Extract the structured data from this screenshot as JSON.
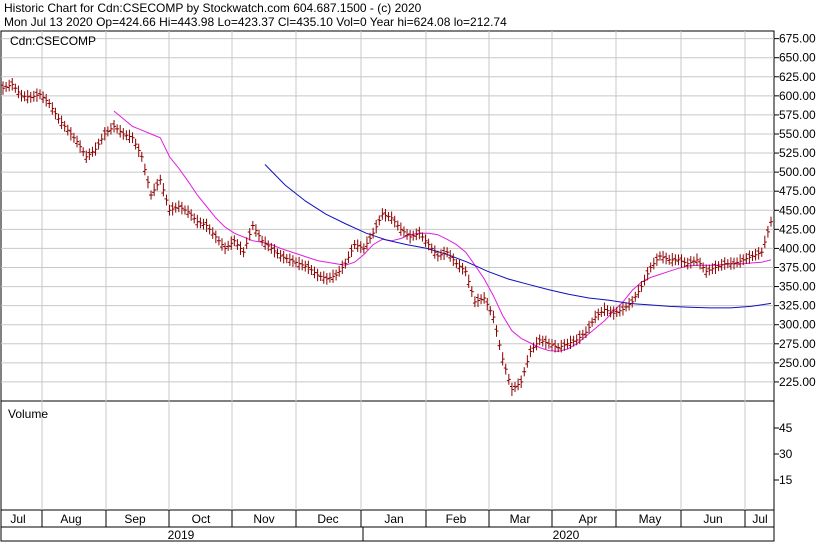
{
  "header": {
    "line1": "Historic Chart for Cdn:CSECOMP by Stockwatch.com 604.687.1500 - (c) 2020",
    "line2": "Mon Jul 13 2020   Op=424.66   Hi=443.98   Lo=423.37   Cl=435.10   Vol=0   Year hi=624.08   lo=212.74"
  },
  "chart_data": {
    "type": "line",
    "symbol_label": "Cdn:CSECOMP",
    "volume_label": "Volume",
    "price_ticks": [
      675,
      650,
      625,
      600,
      575,
      550,
      525,
      500,
      475,
      450,
      425,
      400,
      375,
      350,
      325,
      300,
      275,
      250,
      225
    ],
    "price_tick_labels": [
      "675.00",
      "650.00",
      "625.00",
      "600.00",
      "575.00",
      "550.00",
      "525.00",
      "500.00",
      "475.00",
      "450.00",
      "425.00",
      "400.00",
      "375.00",
      "350.00",
      "325.00",
      "300.00",
      "275.00",
      "250.00",
      "225.00"
    ],
    "volume_ticks": [
      45,
      30,
      15
    ],
    "volume_tick_labels": [
      "45",
      "30",
      "15"
    ],
    "ylim": [
      200,
      685
    ],
    "months": [
      "Jul",
      "Aug",
      "Sep",
      "Oct",
      "Nov",
      "Dec",
      "Jan",
      "Feb",
      "Mar",
      "Apr",
      "May",
      "Jun",
      "Jul"
    ],
    "years": [
      "2019",
      "2020"
    ],
    "colors": {
      "price": "#8b0000",
      "ma_short": "#e020e0",
      "ma_long": "#1010c0",
      "grid": "#c8c8c8"
    },
    "price_series_weeks": [
      [
        0,
        610
      ],
      [
        1,
        615
      ],
      [
        2,
        600
      ],
      [
        3,
        598
      ],
      [
        4,
        602
      ],
      [
        5,
        590
      ],
      [
        6,
        570
      ],
      [
        7,
        555
      ],
      [
        8,
        540
      ],
      [
        9,
        520
      ],
      [
        10,
        530
      ],
      [
        11,
        550
      ],
      [
        12,
        560
      ],
      [
        13,
        550
      ],
      [
        14,
        545
      ],
      [
        15,
        520
      ],
      [
        16,
        470
      ],
      [
        17,
        490
      ],
      [
        18,
        450
      ],
      [
        19,
        455
      ],
      [
        20,
        448
      ],
      [
        21,
        435
      ],
      [
        22,
        430
      ],
      [
        23,
        415
      ],
      [
        24,
        400
      ],
      [
        25,
        410
      ],
      [
        26,
        395
      ],
      [
        27,
        430
      ],
      [
        28,
        410
      ],
      [
        29,
        400
      ],
      [
        30,
        390
      ],
      [
        31,
        385
      ],
      [
        32,
        380
      ],
      [
        33,
        375
      ],
      [
        34,
        365
      ],
      [
        35,
        360
      ],
      [
        36,
        365
      ],
      [
        37,
        380
      ],
      [
        38,
        405
      ],
      [
        39,
        400
      ],
      [
        40,
        420
      ],
      [
        41,
        445
      ],
      [
        42,
        440
      ],
      [
        43,
        425
      ],
      [
        44,
        415
      ],
      [
        45,
        420
      ],
      [
        46,
        405
      ],
      [
        47,
        390
      ],
      [
        48,
        395
      ],
      [
        49,
        380
      ],
      [
        50,
        370
      ],
      [
        51,
        330
      ],
      [
        52,
        335
      ],
      [
        53,
        310
      ],
      [
        54,
        255
      ],
      [
        55,
        215
      ],
      [
        56,
        225
      ],
      [
        57,
        265
      ],
      [
        58,
        280
      ],
      [
        59,
        275
      ],
      [
        60,
        270
      ],
      [
        61,
        275
      ],
      [
        62,
        280
      ],
      [
        63,
        290
      ],
      [
        64,
        310
      ],
      [
        65,
        320
      ],
      [
        66,
        315
      ],
      [
        67,
        320
      ],
      [
        68,
        330
      ],
      [
        69,
        350
      ],
      [
        70,
        375
      ],
      [
        71,
        390
      ],
      [
        72,
        385
      ],
      [
        73,
        385
      ],
      [
        74,
        380
      ],
      [
        75,
        385
      ],
      [
        76,
        370
      ],
      [
        77,
        375
      ],
      [
        78,
        380
      ],
      [
        79,
        380
      ],
      [
        80,
        385
      ],
      [
        81,
        390
      ],
      [
        82,
        395
      ],
      [
        83,
        435
      ]
    ],
    "ma_short_weeks": [
      [
        12,
        580
      ],
      [
        13,
        570
      ],
      [
        14,
        560
      ],
      [
        15,
        555
      ],
      [
        16,
        550
      ],
      [
        17,
        545
      ],
      [
        18,
        520
      ],
      [
        19,
        505
      ],
      [
        20,
        488
      ],
      [
        21,
        470
      ],
      [
        22,
        455
      ],
      [
        23,
        440
      ],
      [
        24,
        428
      ],
      [
        25,
        420
      ],
      [
        26,
        415
      ],
      [
        27,
        410
      ],
      [
        28,
        408
      ],
      [
        29,
        405
      ],
      [
        30,
        400
      ],
      [
        31,
        396
      ],
      [
        32,
        392
      ],
      [
        33,
        388
      ],
      [
        34,
        384
      ],
      [
        35,
        382
      ],
      [
        36,
        380
      ],
      [
        37,
        378
      ],
      [
        38,
        382
      ],
      [
        39,
        392
      ],
      [
        40,
        405
      ],
      [
        41,
        412
      ],
      [
        42,
        410
      ],
      [
        43,
        413
      ],
      [
        44,
        418
      ],
      [
        45,
        420
      ],
      [
        46,
        420
      ],
      [
        47,
        418
      ],
      [
        48,
        412
      ],
      [
        49,
        405
      ],
      [
        50,
        395
      ],
      [
        51,
        378
      ],
      [
        52,
        360
      ],
      [
        53,
        338
      ],
      [
        54,
        312
      ],
      [
        55,
        292
      ],
      [
        56,
        282
      ],
      [
        57,
        276
      ],
      [
        58,
        270
      ],
      [
        59,
        266
      ],
      [
        60,
        265
      ],
      [
        61,
        268
      ],
      [
        62,
        275
      ],
      [
        63,
        285
      ],
      [
        64,
        295
      ],
      [
        65,
        305
      ],
      [
        66,
        318
      ],
      [
        67,
        330
      ],
      [
        68,
        345
      ],
      [
        69,
        356
      ],
      [
        70,
        362
      ],
      [
        71,
        366
      ],
      [
        72,
        370
      ],
      [
        73,
        374
      ],
      [
        74,
        377
      ],
      [
        75,
        378
      ],
      [
        76,
        378
      ],
      [
        77,
        378
      ],
      [
        78,
        379
      ],
      [
        79,
        380
      ],
      [
        80,
        380
      ],
      [
        81,
        381
      ],
      [
        82,
        382
      ],
      [
        83,
        385
      ]
    ],
    "ma_long_weeks": [
      [
        37,
        510
      ],
      [
        41,
        483
      ],
      [
        45,
        462
      ],
      [
        49,
        445
      ],
      [
        53,
        432
      ],
      [
        57,
        420
      ],
      [
        61,
        411
      ],
      [
        65,
        405
      ],
      [
        69,
        400
      ],
      [
        73,
        392
      ],
      [
        77,
        382
      ],
      [
        81,
        370
      ],
      [
        85,
        360
      ],
      [
        89,
        353
      ],
      [
        93,
        346
      ],
      [
        97,
        340
      ],
      [
        101,
        335
      ],
      [
        105,
        332
      ],
      [
        109,
        328
      ],
      [
        113,
        326
      ],
      [
        117,
        324
      ],
      [
        121,
        323
      ],
      [
        125,
        322
      ],
      [
        129,
        322
      ],
      [
        133,
        324
      ],
      [
        137,
        328
      ]
    ]
  }
}
